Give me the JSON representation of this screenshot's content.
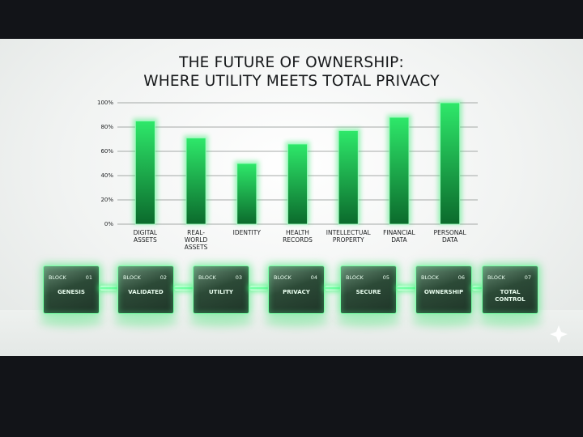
{
  "chart_data": {
    "type": "bar",
    "title": "THE FUTURE OF OWNERSHIP:\nWHERE UTILITY MEETS TOTAL PRIVACY",
    "categories": [
      "DIGITAL ASSETS",
      "REAL-WORLD ASSETS",
      "IDENTITY",
      "HEALTH RECORDS",
      "INTELLECTUAL PROPERTY",
      "FINANCIAL DATA",
      "PERSONAL DATA"
    ],
    "values": [
      85,
      71,
      50,
      66,
      77,
      88,
      100
    ],
    "color": "#2ee86a",
    "ylim": [
      0,
      100
    ],
    "yticks": [
      {
        "value": 0,
        "label": "0%"
      },
      {
        "value": 20,
        "label": "20%"
      },
      {
        "value": 40,
        "label": "40%"
      },
      {
        "value": 60,
        "label": "60%"
      },
      {
        "value": 80,
        "label": "80%"
      },
      {
        "value": 100,
        "label": "100%"
      }
    ],
    "grid": true
  },
  "blocks": [
    {
      "tag": "BLOCK",
      "number": "01",
      "name": "GENESIS"
    },
    {
      "tag": "BLOCK",
      "number": "02",
      "name": "VALIDATED"
    },
    {
      "tag": "BLOCK",
      "number": "03",
      "name": "UTILITY"
    },
    {
      "tag": "BLOCK",
      "number": "04",
      "name": "PRIVACY"
    },
    {
      "tag": "BLOCK",
      "number": "05",
      "name": "SECURE"
    },
    {
      "tag": "BLOCK",
      "number": "06",
      "name": "OWNERSHIP"
    },
    {
      "tag": "BLOCK",
      "number": "07",
      "name": "TOTAL\nCONTROL"
    }
  ]
}
